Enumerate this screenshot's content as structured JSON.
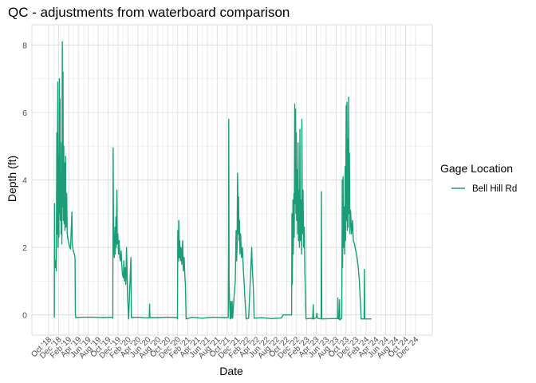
{
  "chart_data": {
    "type": "line",
    "title": "QC - adjustments from waterboard comparison",
    "xlabel": "Date",
    "ylabel": "Depth (ft)",
    "x_scale": "date",
    "xlim": [
      "2018-10-01",
      "2024-12-01"
    ],
    "ylim": [
      -0.6,
      8.6
    ],
    "y_ticks": [
      0,
      2,
      4,
      6,
      8
    ],
    "x_ticks": [
      {
        "date": "2018-10-01",
        "label": "Oct '18"
      },
      {
        "date": "2018-12-01",
        "label": "Dec '18"
      },
      {
        "date": "2019-02-01",
        "label": "Feb '19"
      },
      {
        "date": "2019-04-01",
        "label": "Apr '19"
      },
      {
        "date": "2019-06-01",
        "label": "Jun '19"
      },
      {
        "date": "2019-08-01",
        "label": "Aug '19"
      },
      {
        "date": "2019-10-01",
        "label": "Oct '19"
      },
      {
        "date": "2019-12-01",
        "label": "Dec '19"
      },
      {
        "date": "2020-02-01",
        "label": "Feb '20"
      },
      {
        "date": "2020-04-01",
        "label": "Apr '20"
      },
      {
        "date": "2020-06-01",
        "label": "Jun '20"
      },
      {
        "date": "2020-08-01",
        "label": "Aug '20"
      },
      {
        "date": "2020-10-01",
        "label": "Oct '20"
      },
      {
        "date": "2020-12-01",
        "label": "Dec '20"
      },
      {
        "date": "2021-02-01",
        "label": "Feb '21"
      },
      {
        "date": "2021-04-01",
        "label": "Apr '21"
      },
      {
        "date": "2021-06-01",
        "label": "Jun '21"
      },
      {
        "date": "2021-08-01",
        "label": "Aug '21"
      },
      {
        "date": "2021-10-01",
        "label": "Oct '21"
      },
      {
        "date": "2021-12-01",
        "label": "Dec '21"
      },
      {
        "date": "2022-02-01",
        "label": "Feb '22"
      },
      {
        "date": "2022-04-01",
        "label": "Apr '22"
      },
      {
        "date": "2022-06-01",
        "label": "Jun '22"
      },
      {
        "date": "2022-08-01",
        "label": "Aug '22"
      },
      {
        "date": "2022-10-01",
        "label": "Oct '22"
      },
      {
        "date": "2022-12-01",
        "label": "Dec '22"
      },
      {
        "date": "2023-02-01",
        "label": "Feb '23"
      },
      {
        "date": "2023-04-01",
        "label": "Apr '23"
      },
      {
        "date": "2023-06-01",
        "label": "Jun '23"
      },
      {
        "date": "2023-08-01",
        "label": "Aug '23"
      },
      {
        "date": "2023-10-01",
        "label": "Oct '23"
      },
      {
        "date": "2023-12-01",
        "label": "Dec '23"
      },
      {
        "date": "2024-02-01",
        "label": "Feb '24"
      },
      {
        "date": "2024-04-01",
        "label": "Apr '24"
      },
      {
        "date": "2024-06-01",
        "label": "Jun '24"
      },
      {
        "date": "2024-08-01",
        "label": "Aug '24"
      },
      {
        "date": "2024-10-01",
        "label": "Oct '24"
      },
      {
        "date": "2024-12-01",
        "label": "Dec '24"
      }
    ],
    "grid": true,
    "legend": {
      "title": "Gage Location",
      "position": "right"
    },
    "series": [
      {
        "name": "Bell Hill Rd",
        "color": "#1b9e77",
        "points": [
          [
            "2018-11-05",
            -0.08
          ],
          [
            "2018-11-06",
            3.3
          ],
          [
            "2018-11-08",
            1.7
          ],
          [
            "2018-11-10",
            1.4
          ],
          [
            "2018-11-14",
            1.6
          ],
          [
            "2018-11-17",
            1.3
          ],
          [
            "2018-11-20",
            5.4
          ],
          [
            "2018-11-22",
            2.4
          ],
          [
            "2018-11-26",
            6.9
          ],
          [
            "2018-11-28",
            2.0
          ],
          [
            "2018-12-01",
            4.7
          ],
          [
            "2018-12-03",
            2.3
          ],
          [
            "2018-12-06",
            7.0
          ],
          [
            "2018-12-08",
            3.0
          ],
          [
            "2018-12-10",
            6.4
          ],
          [
            "2018-12-12",
            2.8
          ],
          [
            "2018-12-15",
            3.7
          ],
          [
            "2018-12-17",
            2.4
          ],
          [
            "2018-12-19",
            5.1
          ],
          [
            "2018-12-21",
            2.1
          ],
          [
            "2018-12-24",
            8.1
          ],
          [
            "2018-12-26",
            3.2
          ],
          [
            "2018-12-28",
            7.2
          ],
          [
            "2018-12-30",
            2.8
          ],
          [
            "2019-01-02",
            5.0
          ],
          [
            "2019-01-04",
            2.7
          ],
          [
            "2019-01-07",
            4.5
          ],
          [
            "2019-01-09",
            2.5
          ],
          [
            "2019-01-13",
            4.7
          ],
          [
            "2019-01-15",
            2.6
          ],
          [
            "2019-01-20",
            3.6
          ],
          [
            "2019-01-23",
            2.4
          ],
          [
            "2019-01-29",
            2.2
          ],
          [
            "2019-02-05",
            2.05
          ],
          [
            "2019-02-12",
            1.95
          ],
          [
            "2019-02-19",
            2.8
          ],
          [
            "2019-02-21",
            3.05
          ],
          [
            "2019-02-23",
            2.1
          ],
          [
            "2019-03-01",
            1.9
          ],
          [
            "2019-03-08",
            1.8
          ],
          [
            "2019-03-12",
            1.7
          ],
          [
            "2019-03-14",
            0.05
          ],
          [
            "2019-03-16",
            -0.08
          ],
          [
            "2019-05-01",
            -0.07
          ],
          [
            "2019-07-01",
            -0.07
          ],
          [
            "2019-09-01",
            -0.08
          ],
          [
            "2019-10-28",
            -0.07
          ],
          [
            "2019-10-30",
            -0.1
          ],
          [
            "2019-11-01",
            4.95
          ],
          [
            "2019-11-03",
            2.8
          ],
          [
            "2019-11-05",
            2.0
          ],
          [
            "2019-11-08",
            1.7
          ],
          [
            "2019-11-12",
            2.6
          ],
          [
            "2019-11-14",
            1.8
          ],
          [
            "2019-11-18",
            2.9
          ],
          [
            "2019-11-20",
            2.0
          ],
          [
            "2019-11-24",
            3.7
          ],
          [
            "2019-11-26",
            2.1
          ],
          [
            "2019-11-30",
            2.4
          ],
          [
            "2019-12-04",
            1.8
          ],
          [
            "2019-12-08",
            2.2
          ],
          [
            "2019-12-12",
            1.7
          ],
          [
            "2019-12-16",
            1.6
          ],
          [
            "2019-12-20",
            1.9
          ],
          [
            "2019-12-24",
            1.5
          ],
          [
            "2019-12-28",
            1.2
          ],
          [
            "2020-01-02",
            1.1
          ],
          [
            "2020-01-06",
            1.6
          ],
          [
            "2020-01-10",
            1.0
          ],
          [
            "2020-01-14",
            1.4
          ],
          [
            "2020-01-18",
            0.9
          ],
          [
            "2020-01-22",
            2.0
          ],
          [
            "2020-01-25",
            1.4
          ],
          [
            "2020-01-28",
            0.6
          ],
          [
            "2020-02-01",
            0.2
          ],
          [
            "2020-02-04",
            -0.12
          ],
          [
            "2020-02-18",
            1.7
          ],
          [
            "2020-02-21",
            -0.08
          ],
          [
            "2020-04-01",
            -0.07
          ],
          [
            "2020-06-01",
            -0.09
          ],
          [
            "2020-06-10",
            -0.08
          ],
          [
            "2020-06-12",
            0.32
          ],
          [
            "2020-06-14",
            -0.08
          ],
          [
            "2020-08-01",
            -0.08
          ],
          [
            "2020-10-01",
            -0.07
          ],
          [
            "2020-11-28",
            -0.08
          ],
          [
            "2020-11-30",
            -0.12
          ],
          [
            "2020-12-02",
            2.5
          ],
          [
            "2020-12-05",
            1.6
          ],
          [
            "2020-12-08",
            2.8
          ],
          [
            "2020-12-11",
            1.7
          ],
          [
            "2020-12-14",
            2.2
          ],
          [
            "2020-12-18",
            1.6
          ],
          [
            "2020-12-22",
            2.0
          ],
          [
            "2020-12-27",
            1.5
          ],
          [
            "2021-01-01",
            2.2
          ],
          [
            "2021-01-05",
            1.3
          ],
          [
            "2021-01-10",
            1.7
          ],
          [
            "2021-01-15",
            1.1
          ],
          [
            "2021-01-18",
            0.9
          ],
          [
            "2021-01-22",
            -0.12
          ],
          [
            "2021-03-01",
            -0.07
          ],
          [
            "2021-05-01",
            -0.1
          ],
          [
            "2021-07-01",
            -0.07
          ],
          [
            "2021-09-01",
            -0.08
          ],
          [
            "2021-10-08",
            -0.08
          ],
          [
            "2021-10-10",
            2.0
          ],
          [
            "2021-10-11",
            5.8
          ],
          [
            "2021-10-13",
            1.0
          ],
          [
            "2021-10-16",
            0.4
          ],
          [
            "2021-10-20",
            -0.12
          ],
          [
            "2021-10-24",
            0.4
          ],
          [
            "2021-10-27",
            -0.1
          ],
          [
            "2021-11-01",
            0.4
          ],
          [
            "2021-11-04",
            -0.1
          ],
          [
            "2021-11-12",
            0.5
          ],
          [
            "2021-11-20",
            1.0
          ],
          [
            "2021-11-25",
            2.5
          ],
          [
            "2021-11-28",
            1.6
          ],
          [
            "2021-12-01",
            2.0
          ],
          [
            "2021-12-04",
            4.2
          ],
          [
            "2021-12-07",
            2.4
          ],
          [
            "2021-12-10",
            3.5
          ],
          [
            "2021-12-13",
            2.2
          ],
          [
            "2021-12-16",
            2.8
          ],
          [
            "2021-12-19",
            1.8
          ],
          [
            "2021-12-23",
            2.4
          ],
          [
            "2021-12-28",
            1.7
          ],
          [
            "2022-01-03",
            2.0
          ],
          [
            "2022-01-08",
            1.4
          ],
          [
            "2022-01-13",
            1.0
          ],
          [
            "2022-01-18",
            0.5
          ],
          [
            "2022-01-23",
            0.1
          ],
          [
            "2022-01-26",
            -0.12
          ],
          [
            "2022-02-10",
            -0.1
          ],
          [
            "2022-03-01",
            2.0
          ],
          [
            "2022-03-04",
            1.4
          ],
          [
            "2022-03-10",
            0.9
          ],
          [
            "2022-03-14",
            0.3
          ],
          [
            "2022-03-16",
            -0.1
          ],
          [
            "2022-05-01",
            -0.08
          ],
          [
            "2022-07-01",
            -0.11
          ],
          [
            "2022-08-31",
            -0.09
          ],
          [
            "2022-09-10",
            0.0
          ],
          [
            "2022-10-20",
            0.0
          ],
          [
            "2022-11-01",
            0.0
          ],
          [
            "2022-11-03",
            3.0
          ],
          [
            "2022-11-05",
            0.9
          ],
          [
            "2022-11-09",
            3.4
          ],
          [
            "2022-11-11",
            1.8
          ],
          [
            "2022-11-15",
            3.6
          ],
          [
            "2022-11-17",
            2.3
          ],
          [
            "2022-11-20",
            6.25
          ],
          [
            "2022-11-22",
            3.3
          ],
          [
            "2022-11-25",
            6.1
          ],
          [
            "2022-11-27",
            3.0
          ],
          [
            "2022-11-30",
            5.4
          ],
          [
            "2022-12-02",
            2.8
          ],
          [
            "2022-12-05",
            4.3
          ],
          [
            "2022-12-08",
            2.4
          ],
          [
            "2022-12-11",
            5.1
          ],
          [
            "2022-12-13",
            2.2
          ],
          [
            "2022-12-16",
            3.7
          ],
          [
            "2022-12-19",
            2.0
          ],
          [
            "2022-12-22",
            5.5
          ],
          [
            "2022-12-24",
            2.2
          ],
          [
            "2022-12-28",
            3.4
          ],
          [
            "2023-01-01",
            1.8
          ],
          [
            "2023-01-03",
            5.8
          ],
          [
            "2023-01-06",
            2.4
          ],
          [
            "2023-01-10",
            3.7
          ],
          [
            "2023-01-14",
            2.0
          ],
          [
            "2023-01-18",
            2.6
          ],
          [
            "2023-01-21",
            1.3
          ],
          [
            "2023-01-25",
            0.6
          ],
          [
            "2023-01-28",
            -0.12
          ],
          [
            "2023-03-01",
            -0.1
          ],
          [
            "2023-03-10",
            -0.12
          ],
          [
            "2023-03-14",
            0.3
          ],
          [
            "2023-03-16",
            -0.12
          ],
          [
            "2023-04-01",
            -0.08
          ],
          [
            "2023-04-05",
            0.05
          ],
          [
            "2023-04-08",
            -0.1
          ],
          [
            "2023-05-01",
            -0.12
          ],
          [
            "2023-05-03",
            3.65
          ],
          [
            "2023-05-05",
            -0.12
          ],
          [
            "2023-07-01",
            -0.11
          ],
          [
            "2023-08-10",
            -0.11
          ],
          [
            "2023-08-12",
            0.5
          ],
          [
            "2023-08-14",
            -0.12
          ],
          [
            "2023-08-20",
            -0.12
          ],
          [
            "2023-08-22",
            0.45
          ],
          [
            "2023-08-24",
            -0.15
          ],
          [
            "2023-09-05",
            -0.1
          ],
          [
            "2023-09-08",
            4.0
          ],
          [
            "2023-09-10",
            1.4
          ],
          [
            "2023-09-13",
            4.1
          ],
          [
            "2023-09-15",
            2.0
          ],
          [
            "2023-09-19",
            3.2
          ],
          [
            "2023-09-22",
            1.8
          ],
          [
            "2023-09-26",
            4.4
          ],
          [
            "2023-09-28",
            2.2
          ],
          [
            "2023-10-02",
            6.2
          ],
          [
            "2023-10-04",
            2.8
          ],
          [
            "2023-10-07",
            6.3
          ],
          [
            "2023-10-09",
            2.5
          ],
          [
            "2023-10-12",
            5.2
          ],
          [
            "2023-10-14",
            2.6
          ],
          [
            "2023-10-17",
            6.45
          ],
          [
            "2023-10-19",
            3.0
          ],
          [
            "2023-10-22",
            4.8
          ],
          [
            "2023-10-25",
            2.4
          ],
          [
            "2023-10-29",
            3.1
          ],
          [
            "2023-11-04",
            2.4
          ],
          [
            "2023-11-10",
            2.8
          ],
          [
            "2023-11-15",
            2.2
          ],
          [
            "2023-11-22",
            2.1
          ],
          [
            "2023-11-30",
            1.9
          ],
          [
            "2023-12-08",
            1.7
          ],
          [
            "2023-12-15",
            1.4
          ],
          [
            "2023-12-22",
            1.0
          ],
          [
            "2023-12-28",
            0.4
          ],
          [
            "2024-01-02",
            -0.12
          ],
          [
            "2024-01-20",
            -0.12
          ],
          [
            "2024-01-22",
            1.35
          ],
          [
            "2024-01-24",
            -0.12
          ],
          [
            "2024-03-01",
            -0.12
          ],
          [
            "2024-03-05",
            -0.12
          ]
        ]
      }
    ]
  }
}
